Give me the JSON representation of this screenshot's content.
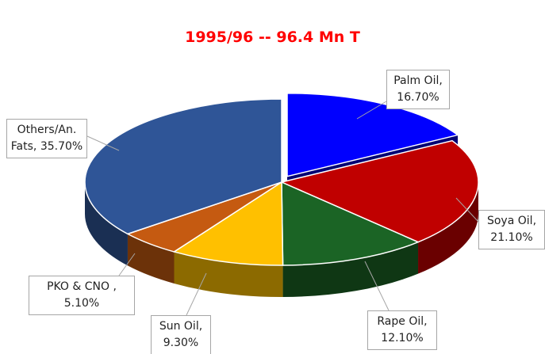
{
  "chart_data": {
    "type": "pie",
    "title": "1995/96 -- 96.4 Mn T",
    "categories": [
      "Palm Oil",
      "Soya Oil",
      "Rape Oil",
      "Sun Oil",
      "PKO & CNO ",
      "Others/An. Fats"
    ],
    "values": [
      16.7,
      21.1,
      12.1,
      9.3,
      5.1,
      35.7
    ],
    "value_labels": [
      "16.70%",
      "21.10%",
      "12.10%",
      "9.30%",
      "5.10%",
      "35.70%"
    ],
    "separator": ", ",
    "colors": [
      "#0000ff",
      "#c00000",
      "#1b6425",
      "#ffc000",
      "#c55a11",
      "#2f5597"
    ]
  }
}
